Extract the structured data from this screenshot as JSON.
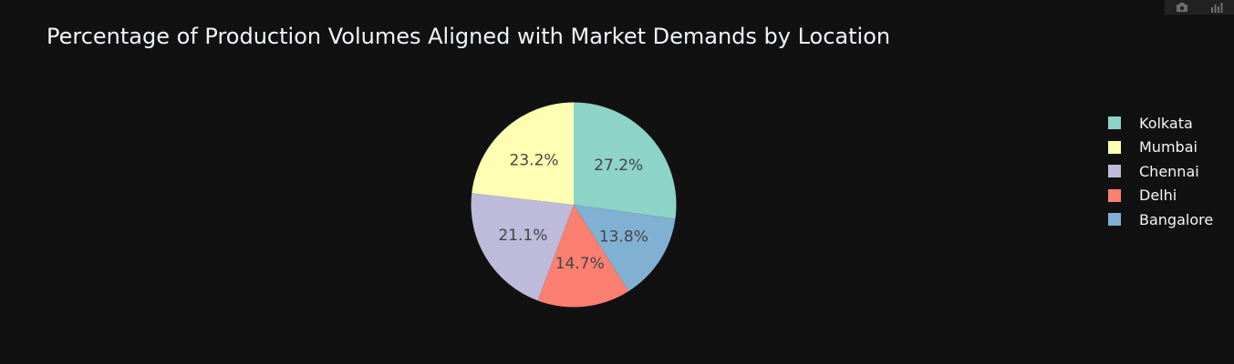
{
  "chart_data": {
    "type": "pie",
    "title": "Percentage of Production Volumes Aligned with Market Demands by Location",
    "slices": [
      {
        "label": "Kolkata",
        "value": 27.2,
        "text": "27.2%",
        "color": "#8dd3c7"
      },
      {
        "label": "Bangalore",
        "value": 13.8,
        "text": "13.8%",
        "color": "#80b1d3"
      },
      {
        "label": "Delhi",
        "value": 14.7,
        "text": "14.7%",
        "color": "#fb8072"
      },
      {
        "label": "Chennai",
        "value": 21.1,
        "text": "21.1%",
        "color": "#bebada"
      },
      {
        "label": "Mumbai",
        "value": 23.2,
        "text": "23.2%",
        "color": "#ffffb3"
      }
    ],
    "legend": [
      {
        "label": "Kolkata",
        "color": "#8dd3c7"
      },
      {
        "label": "Mumbai",
        "color": "#ffffb3"
      },
      {
        "label": "Chennai",
        "color": "#bebada"
      },
      {
        "label": "Delhi",
        "color": "#fb8072"
      },
      {
        "label": "Bangalore",
        "color": "#80b1d3"
      }
    ],
    "legend_position": "right",
    "direction": "clockwise",
    "background": "#111111"
  },
  "modebar": {
    "icons": [
      "camera-icon",
      "bar-chart-icon"
    ]
  }
}
